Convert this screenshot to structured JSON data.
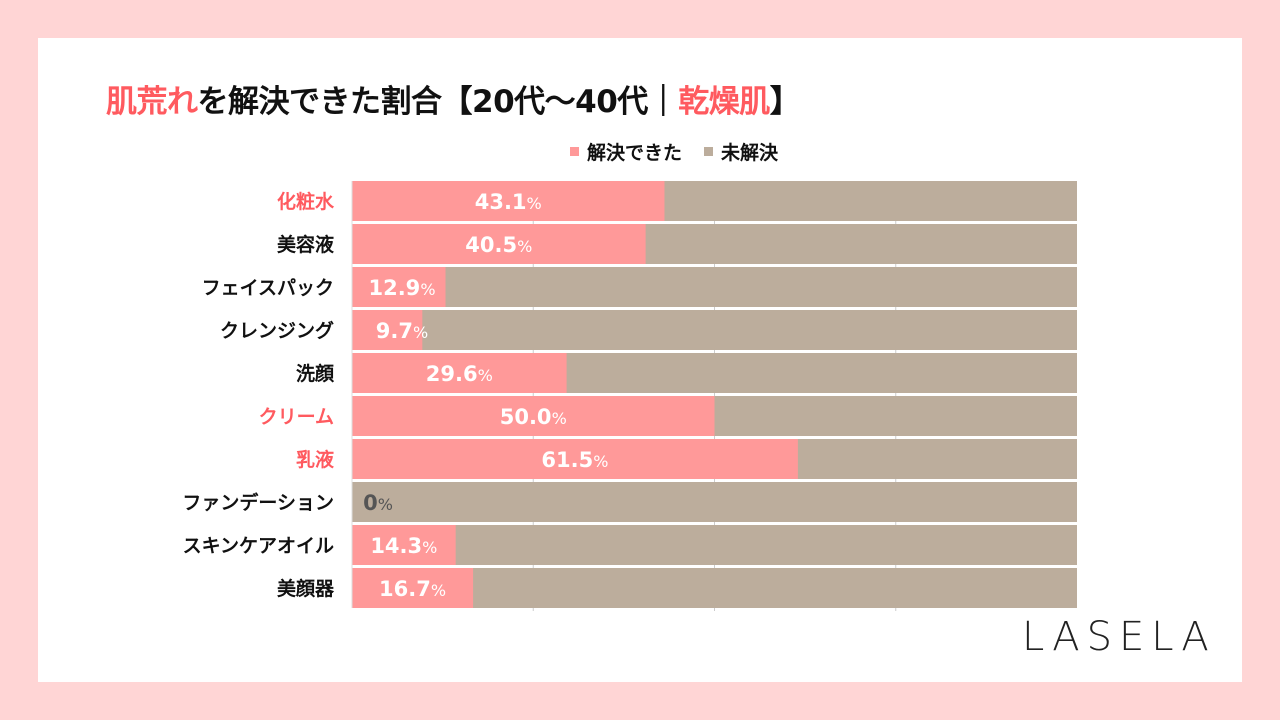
{
  "title": {
    "part1": "肌荒れ",
    "part2": "を解決できた割合【20代〜40代｜",
    "part3": "乾燥肌",
    "part4": "】"
  },
  "colors": {
    "solved": "#ff9999",
    "unsolved": "#bcad9c",
    "highlight": "#ff5a5f",
    "text": "#111111"
  },
  "logo": "LASELA",
  "chart_data": {
    "type": "bar",
    "orientation": "horizontal",
    "stacked": "100%",
    "categories": [
      "化粧水",
      "美容液",
      "フェイスパック",
      "クレンジング",
      "洗顔",
      "クリーム",
      "乳液",
      "ファンデーション",
      "スキンケアオイル",
      "美顔器"
    ],
    "highlighted_categories": [
      "化粧水",
      "クリーム",
      "乳液"
    ],
    "series": [
      {
        "name": "解決できた",
        "values": [
          43.1,
          40.5,
          12.9,
          9.7,
          29.6,
          50.0,
          61.5,
          0,
          14.3,
          16.7
        ],
        "labels": [
          "43.1",
          "40.5",
          "12.9",
          "9.7",
          "29.6",
          "50.0",
          "61.5",
          "0",
          "14.3",
          "16.7"
        ]
      },
      {
        "name": "未解決",
        "values": [
          56.9,
          59.5,
          87.1,
          90.3,
          70.4,
          50.0,
          38.5,
          100,
          85.7,
          83.3
        ]
      }
    ],
    "unit": "%",
    "xlim": [
      0,
      100
    ],
    "grid": true,
    "legend": "top-right"
  }
}
